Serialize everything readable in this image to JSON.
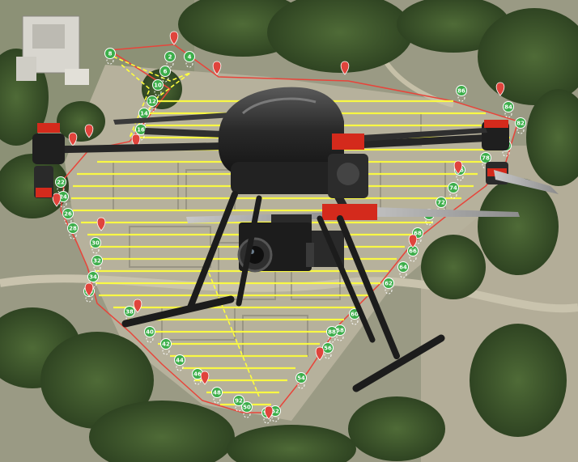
{
  "image": {
    "kind": "photo-composite",
    "subject": "drone",
    "background": "aerial-map"
  },
  "colors": {
    "terrain": "#a7a591",
    "vegetation": "#3f5a2c",
    "flight_path": "#ffff3c",
    "boundary": "#e8443a",
    "waypoint_green": "#3cae4a",
    "waypoint_red": "#e0443c",
    "drone_body": "#2d2d2d",
    "motor_accent": "#d42a1c"
  },
  "waypoints": {
    "labels": [
      "8",
      "2",
      "4",
      "6",
      "10",
      "12",
      "14",
      "16",
      "22",
      "24",
      "26",
      "28",
      "30",
      "32",
      "34",
      "36",
      "38",
      "40",
      "42",
      "44",
      "46",
      "48",
      "50",
      "52",
      "54",
      "56",
      "58",
      "60",
      "62",
      "64",
      "66",
      "68",
      "70",
      "72",
      "74",
      "76",
      "78",
      "80",
      "82",
      "84",
      "86",
      "88",
      "90",
      "92"
    ]
  }
}
